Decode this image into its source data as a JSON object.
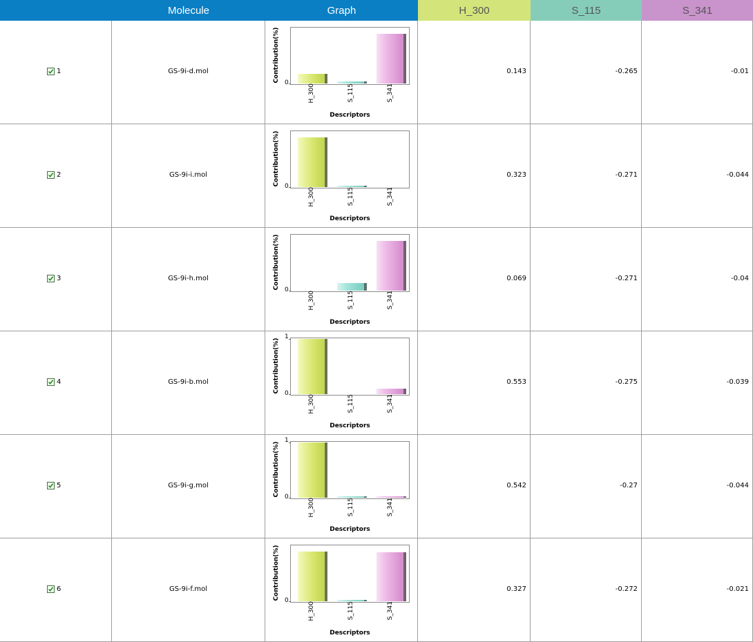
{
  "header": {
    "columns": [
      {
        "label": "",
        "bg": "#0a7fc4",
        "color": "#ffffff"
      },
      {
        "label": "Molecule",
        "bg": "#0a7fc4",
        "color": "#ffffff"
      },
      {
        "label": "Graph",
        "bg": "#0a7fc4",
        "color": "#ffffff"
      },
      {
        "label": "H_300",
        "bg": "#d3e47a",
        "color": "#555555"
      },
      {
        "label": "S_115",
        "bg": "#86cdb9",
        "color": "#555555"
      },
      {
        "label": "S_341",
        "bg": "#c993cc",
        "color": "#555555"
      }
    ]
  },
  "chart_common": {
    "ylabel": "Contribution(%)",
    "xlabel": "Descriptors",
    "categories": [
      "H_300",
      "S_115",
      "S_341"
    ],
    "colors": [
      "#d3e47a",
      "#8fd8cc",
      "#e2a3da"
    ]
  },
  "rows": [
    {
      "index": "1",
      "checked": true,
      "molecule": "GS-9i-d.mol",
      "h300": "0.143",
      "s115": "-0.265",
      "s341": "-0.01"
    },
    {
      "index": "2",
      "checked": true,
      "molecule": "GS-9i-i.mol",
      "h300": "0.323",
      "s115": "-0.271",
      "s341": "-0.044"
    },
    {
      "index": "3",
      "checked": true,
      "molecule": "GS-9i-h.mol",
      "h300": "0.069",
      "s115": "-0.271",
      "s341": "-0.04"
    },
    {
      "index": "4",
      "checked": true,
      "molecule": "GS-9i-b.mol",
      "h300": "0.553",
      "s115": "-0.275",
      "s341": "-0.039"
    },
    {
      "index": "5",
      "checked": true,
      "molecule": "GS-9i-g.mol",
      "h300": "0.542",
      "s115": "-0.27",
      "s341": "-0.044"
    },
    {
      "index": "6",
      "checked": true,
      "molecule": "GS-9i-f.mol",
      "h300": "0.327",
      "s115": "-0.272",
      "s341": "-0.021"
    }
  ],
  "chart_data": [
    {
      "type": "bar",
      "categories": [
        "H_300",
        "S_115",
        "S_341"
      ],
      "values": [
        0.17,
        0.04,
        0.88
      ],
      "ylim": [
        0,
        1
      ],
      "yticks": [
        "0"
      ],
      "xlabel": "Descriptors",
      "ylabel": "Contribution(%)"
    },
    {
      "type": "bar",
      "categories": [
        "H_300",
        "S_115",
        "S_341"
      ],
      "values": [
        0.88,
        0.02,
        0.0
      ],
      "ylim": [
        0,
        1
      ],
      "yticks": [
        "0"
      ],
      "xlabel": "Descriptors",
      "ylabel": "Contribution(%)"
    },
    {
      "type": "bar",
      "categories": [
        "H_300",
        "S_115",
        "S_341"
      ],
      "values": [
        0.0,
        0.13,
        0.88
      ],
      "ylim": [
        0,
        1
      ],
      "yticks": [
        "0"
      ],
      "xlabel": "Descriptors",
      "ylabel": "Contribution(%)"
    },
    {
      "type": "bar",
      "categories": [
        "H_300",
        "S_115",
        "S_341"
      ],
      "values": [
        0.97,
        0.0,
        0.1
      ],
      "ylim": [
        0,
        1
      ],
      "yticks": [
        "0",
        "1"
      ],
      "xlabel": "Descriptors",
      "ylabel": "Contribution(%)"
    },
    {
      "type": "bar",
      "categories": [
        "H_300",
        "S_115",
        "S_341"
      ],
      "values": [
        0.97,
        0.02,
        0.02
      ],
      "ylim": [
        0,
        1
      ],
      "yticks": [
        "0",
        "1"
      ],
      "xlabel": "Descriptors",
      "ylabel": "Contribution(%)"
    },
    {
      "type": "bar",
      "categories": [
        "H_300",
        "S_115",
        "S_341"
      ],
      "values": [
        0.88,
        0.02,
        0.86
      ],
      "ylim": [
        0,
        1
      ],
      "yticks": [
        "0"
      ],
      "xlabel": "Descriptors",
      "ylabel": "Contribution(%)"
    }
  ]
}
